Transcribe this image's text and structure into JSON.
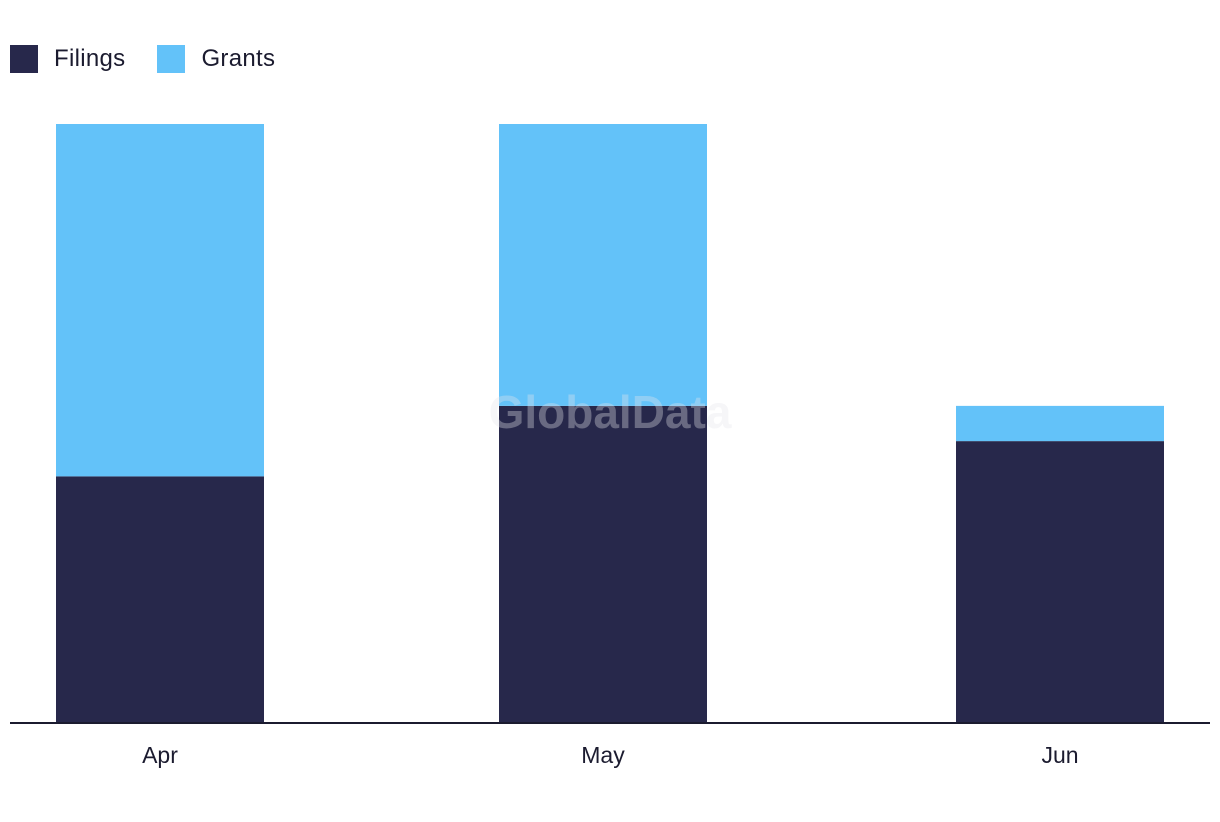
{
  "chart_data": {
    "type": "bar",
    "stacked": true,
    "categories": [
      "Apr",
      "May",
      "Jun"
    ],
    "series": [
      {
        "name": "Filings",
        "values": [
          7,
          9,
          8
        ]
      },
      {
        "name": "Grants",
        "values": [
          10,
          8,
          1
        ]
      }
    ],
    "ylim": [
      0,
      17
    ],
    "grid": false,
    "legend_position": "top-left"
  },
  "legend": {
    "items": [
      {
        "label": "Filings",
        "color": "#27284b"
      },
      {
        "label": "Grants",
        "color": "#63c2f9"
      }
    ]
  },
  "colors": {
    "Filings": "#27284b",
    "Grants": "#63c2f9",
    "axis": "#1b1b2f"
  },
  "watermark": "GlobalData"
}
